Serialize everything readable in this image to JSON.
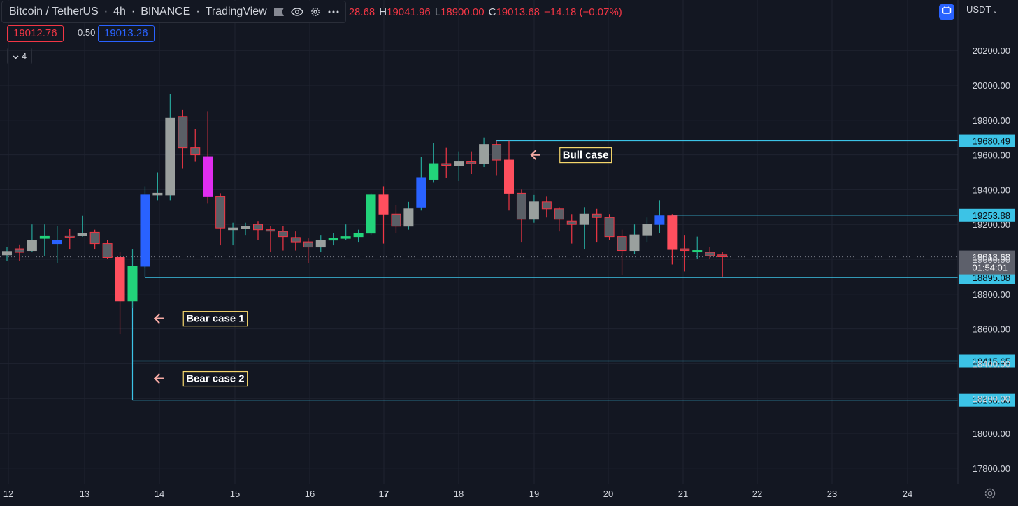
{
  "header": {
    "symbol": "Bitcoin / TetherUS",
    "interval": "4h",
    "exchange": "BINANCE",
    "source": "TradingView",
    "ohlc_open_partial": "28.68",
    "ohlc_h_label": "H",
    "ohlc_high": "19041.96",
    "ohlc_l_label": "L",
    "ohlc_low": "18900.00",
    "ohlc_c_label": "C",
    "ohlc_close": "19013.68",
    "ohlc_change": "−14.18 (−0.07%)"
  },
  "order": {
    "sell_price": "19012.76",
    "spread": "0.50",
    "buy_price": "19013.26"
  },
  "indicators": {
    "count": "4"
  },
  "currency": {
    "label": "USDT"
  },
  "colors": {
    "bg": "#131722",
    "grid": "#1f2330",
    "up": "#26a69a",
    "down": "#f23645",
    "level": "#3cc3e6",
    "annotation_border": "#f5d66b",
    "arrow": "#f4a9a3"
  },
  "chart_data": {
    "type": "candlestick",
    "symbol": "Bitcoin / TetherUS",
    "interval": "4h",
    "y_axis": {
      "range": [
        17700,
        20500
      ],
      "ticks": [
        17800,
        18000,
        18200,
        18400,
        18600,
        18800,
        19000,
        19200,
        19400,
        19600,
        19800,
        20000,
        20200
      ],
      "tick_labels": [
        "17800.00",
        "18000.00",
        "18200.00",
        "18400.00",
        "18600.00",
        "18800.00",
        "19000.00",
        "19200.00",
        "19400.00",
        "19600.00",
        "19800.00",
        "20000.00",
        "20200.00"
      ]
    },
    "x_axis": {
      "labels": [
        "12",
        "13",
        "14",
        "15",
        "16",
        "17",
        "18",
        "19",
        "20",
        "21",
        "22",
        "23",
        "24"
      ],
      "bold": [
        "17"
      ]
    },
    "candles": [
      {
        "o": 19025,
        "h": 19070,
        "l": 18990,
        "c": 19045,
        "col": "gray"
      },
      {
        "o": 19040,
        "h": 19085,
        "l": 18990,
        "c": 19060,
        "col": "red"
      },
      {
        "o": 19050,
        "h": 19200,
        "l": 19040,
        "c": 19110,
        "col": "gray"
      },
      {
        "o": 19120,
        "h": 19200,
        "l": 19020,
        "c": 19135,
        "col": "green"
      },
      {
        "o": 19090,
        "h": 19190,
        "l": 18980,
        "c": 19110,
        "col": "blue"
      },
      {
        "o": 19130,
        "h": 19175,
        "l": 19060,
        "c": 19135,
        "col": "red"
      },
      {
        "o": 19135,
        "h": 19250,
        "l": 19130,
        "c": 19150,
        "col": "gray"
      },
      {
        "o": 19155,
        "h": 19170,
        "l": 19060,
        "c": 19090,
        "col": "red"
      },
      {
        "o": 19090,
        "h": 19110,
        "l": 19000,
        "c": 19010,
        "col": "red"
      },
      {
        "o": 19010,
        "h": 19040,
        "l": 18570,
        "c": 18760,
        "col": "down"
      },
      {
        "o": 18760,
        "h": 19060,
        "l": 18720,
        "c": 18960,
        "col": "green"
      },
      {
        "o": 18960,
        "h": 19420,
        "l": 18950,
        "c": 19370,
        "col": "blue"
      },
      {
        "o": 19370,
        "h": 19500,
        "l": 19340,
        "c": 19380,
        "col": "gray"
      },
      {
        "o": 19370,
        "h": 19950,
        "l": 19340,
        "c": 19810,
        "col": "gray"
      },
      {
        "o": 19820,
        "h": 19860,
        "l": 19520,
        "c": 19640,
        "col": "red"
      },
      {
        "o": 19640,
        "h": 19750,
        "l": 19560,
        "c": 19600,
        "col": "red"
      },
      {
        "o": 19590,
        "h": 19850,
        "l": 19320,
        "c": 19360,
        "col": "magenta"
      },
      {
        "o": 19360,
        "h": 19380,
        "l": 19080,
        "c": 19180,
        "col": "red"
      },
      {
        "o": 19180,
        "h": 19210,
        "l": 19080,
        "c": 19170,
        "col": "gray"
      },
      {
        "o": 19175,
        "h": 19210,
        "l": 19140,
        "c": 19190,
        "col": "gray"
      },
      {
        "o": 19200,
        "h": 19220,
        "l": 19110,
        "c": 19170,
        "col": "red"
      },
      {
        "o": 19170,
        "h": 19190,
        "l": 19040,
        "c": 19165,
        "col": "red"
      },
      {
        "o": 19160,
        "h": 19190,
        "l": 19050,
        "c": 19130,
        "col": "red"
      },
      {
        "o": 19125,
        "h": 19160,
        "l": 19050,
        "c": 19100,
        "col": "red"
      },
      {
        "o": 19100,
        "h": 19120,
        "l": 18980,
        "c": 19070,
        "col": "red"
      },
      {
        "o": 19070,
        "h": 19140,
        "l": 19040,
        "c": 19110,
        "col": "gray"
      },
      {
        "o": 19110,
        "h": 19150,
        "l": 19080,
        "c": 19120,
        "col": "green"
      },
      {
        "o": 19120,
        "h": 19200,
        "l": 19110,
        "c": 19130,
        "col": "green"
      },
      {
        "o": 19130,
        "h": 19170,
        "l": 19100,
        "c": 19150,
        "col": "green"
      },
      {
        "o": 19150,
        "h": 19380,
        "l": 19140,
        "c": 19370,
        "col": "green"
      },
      {
        "o": 19370,
        "h": 19420,
        "l": 19090,
        "c": 19260,
        "col": "down"
      },
      {
        "o": 19260,
        "h": 19310,
        "l": 19150,
        "c": 19190,
        "col": "red"
      },
      {
        "o": 19190,
        "h": 19330,
        "l": 19170,
        "c": 19290,
        "col": "gray"
      },
      {
        "o": 19300,
        "h": 19590,
        "l": 19280,
        "c": 19470,
        "col": "blue"
      },
      {
        "o": 19460,
        "h": 19670,
        "l": 19440,
        "c": 19550,
        "col": "green"
      },
      {
        "o": 19550,
        "h": 19640,
        "l": 19470,
        "c": 19540,
        "col": "red"
      },
      {
        "o": 19540,
        "h": 19620,
        "l": 19450,
        "c": 19560,
        "col": "gray"
      },
      {
        "o": 19560,
        "h": 19620,
        "l": 19490,
        "c": 19550,
        "col": "red"
      },
      {
        "o": 19550,
        "h": 19700,
        "l": 19530,
        "c": 19660,
        "col": "gray"
      },
      {
        "o": 19660,
        "h": 19680,
        "l": 19480,
        "c": 19570,
        "col": "red"
      },
      {
        "o": 19570,
        "h": 19680,
        "l": 19280,
        "c": 19380,
        "col": "down"
      },
      {
        "o": 19380,
        "h": 19400,
        "l": 19100,
        "c": 19230,
        "col": "red"
      },
      {
        "o": 19230,
        "h": 19370,
        "l": 19210,
        "c": 19330,
        "col": "gray"
      },
      {
        "o": 19330,
        "h": 19360,
        "l": 19240,
        "c": 19290,
        "col": "red"
      },
      {
        "o": 19290,
        "h": 19300,
        "l": 19160,
        "c": 19230,
        "col": "red"
      },
      {
        "o": 19220,
        "h": 19260,
        "l": 19090,
        "c": 19200,
        "col": "red"
      },
      {
        "o": 19200,
        "h": 19300,
        "l": 19060,
        "c": 19260,
        "col": "gray"
      },
      {
        "o": 19260,
        "h": 19290,
        "l": 19100,
        "c": 19240,
        "col": "red"
      },
      {
        "o": 19240,
        "h": 19260,
        "l": 19110,
        "c": 19130,
        "col": "red"
      },
      {
        "o": 19130,
        "h": 19170,
        "l": 18910,
        "c": 19050,
        "col": "red"
      },
      {
        "o": 19050,
        "h": 19200,
        "l": 19030,
        "c": 19140,
        "col": "gray"
      },
      {
        "o": 19140,
        "h": 19240,
        "l": 19100,
        "c": 19200,
        "col": "gray"
      },
      {
        "o": 19200,
        "h": 19340,
        "l": 19150,
        "c": 19250,
        "col": "blue"
      },
      {
        "o": 19250,
        "h": 19260,
        "l": 18970,
        "c": 19060,
        "col": "down"
      },
      {
        "o": 19060,
        "h": 19140,
        "l": 18930,
        "c": 19050,
        "col": "red"
      },
      {
        "o": 19045,
        "h": 19130,
        "l": 19000,
        "c": 19050,
        "col": "green"
      },
      {
        "o": 19040,
        "h": 19070,
        "l": 19000,
        "c": 19020,
        "col": "red"
      },
      {
        "o": 19025,
        "h": 19042,
        "l": 18900,
        "c": 19014,
        "col": "red"
      }
    ],
    "levels": [
      {
        "value": 19680.49,
        "label": "19680.49",
        "start_candle": 39
      },
      {
        "value": 19253.88,
        "label": "19253.88",
        "start_candle": 53
      },
      {
        "value": 18895.08,
        "label": "18895.08",
        "start_candle": 11
      },
      {
        "value": 18415.65,
        "label": "18415.65",
        "start_candle": 10
      },
      {
        "value": 18190.0,
        "label": "18190.00",
        "start_candle": 10
      }
    ],
    "last_price": {
      "value": 19013.68,
      "label": "19013.68",
      "countdown": "01:54:01"
    },
    "annotations": [
      {
        "text": "Bull case",
        "price": 19600,
        "arrow_candle": 41,
        "label_candle": 45
      },
      {
        "text": "Bear case 1",
        "price": 18660,
        "arrow_candle": 11,
        "label_candle": 15
      },
      {
        "text": "Bear case 2",
        "price": 18315,
        "arrow_candle": 11,
        "label_candle": 15
      }
    ]
  }
}
